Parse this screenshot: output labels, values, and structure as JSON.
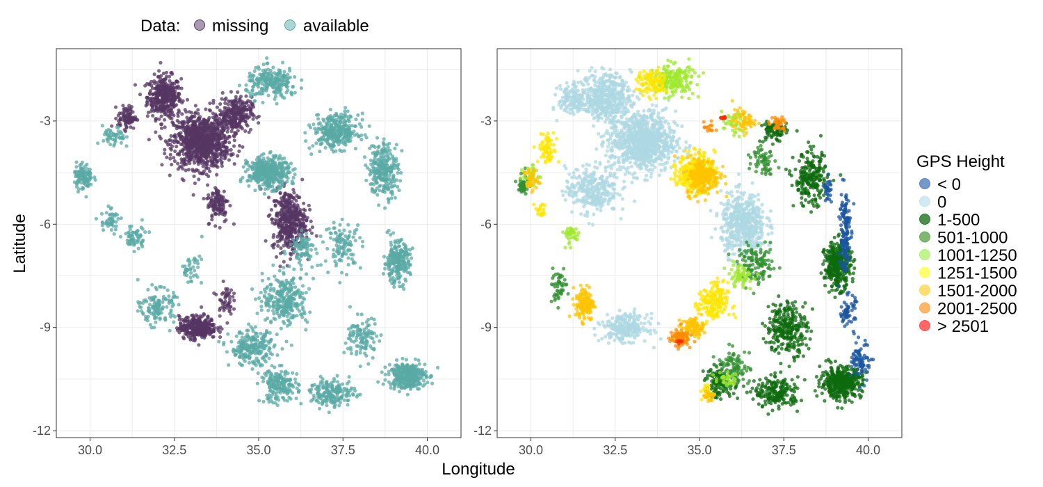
{
  "chart_data": [
    {
      "type": "scatter",
      "panel": "left",
      "xlabel": "Longitude",
      "ylabel": "Latitude",
      "xlim": [
        29,
        41
      ],
      "ylim": [
        -12.2,
        -0.9
      ],
      "xticks": [
        "30.0",
        "32.5",
        "35.0",
        "37.5",
        "40.0"
      ],
      "yticks": [
        "-3",
        "-6",
        "-9",
        "-12"
      ],
      "grid": true,
      "legend": {
        "title": "Data:",
        "position": "top",
        "entries": [
          {
            "label": "missing",
            "color": "#553563"
          },
          {
            "label": "available",
            "color": "#5aa9a6"
          }
        ]
      },
      "series": [
        {
          "name": "missing",
          "color": "#553563",
          "clusters": [
            {
              "x": 32.2,
              "y": -2.3,
              "sx": 0.45,
              "sy": 0.55,
              "n": 380
            },
            {
              "x": 33.3,
              "y": -3.6,
              "sx": 0.75,
              "sy": 0.7,
              "n": 950
            },
            {
              "x": 34.3,
              "y": -2.8,
              "sx": 0.45,
              "sy": 0.45,
              "n": 260
            },
            {
              "x": 31.1,
              "y": -2.9,
              "sx": 0.25,
              "sy": 0.3,
              "n": 90
            },
            {
              "x": 33.8,
              "y": -5.4,
              "sx": 0.3,
              "sy": 0.5,
              "n": 110
            },
            {
              "x": 35.9,
              "y": -5.9,
              "sx": 0.45,
              "sy": 0.8,
              "n": 420
            },
            {
              "x": 33.2,
              "y": -9.0,
              "sx": 0.5,
              "sy": 0.3,
              "n": 330
            },
            {
              "x": 34.0,
              "y": -8.2,
              "sx": 0.2,
              "sy": 0.4,
              "n": 50
            }
          ]
        },
        {
          "name": "available",
          "color": "#5aa9a6",
          "clusters": [
            {
              "x": 29.8,
              "y": -4.6,
              "sx": 0.25,
              "sy": 0.35,
              "n": 110
            },
            {
              "x": 30.7,
              "y": -3.5,
              "sx": 0.3,
              "sy": 0.3,
              "n": 50
            },
            {
              "x": 35.4,
              "y": -1.9,
              "sx": 0.7,
              "sy": 0.4,
              "n": 230
            },
            {
              "x": 37.3,
              "y": -3.3,
              "sx": 0.6,
              "sy": 0.45,
              "n": 330
            },
            {
              "x": 35.3,
              "y": -4.5,
              "sx": 0.55,
              "sy": 0.4,
              "n": 420
            },
            {
              "x": 38.7,
              "y": -4.4,
              "sx": 0.4,
              "sy": 0.7,
              "n": 260
            },
            {
              "x": 39.1,
              "y": -7.1,
              "sx": 0.35,
              "sy": 0.55,
              "n": 230
            },
            {
              "x": 37.5,
              "y": -6.6,
              "sx": 0.5,
              "sy": 0.6,
              "n": 110
            },
            {
              "x": 35.8,
              "y": -8.2,
              "sx": 0.6,
              "sy": 0.65,
              "n": 280
            },
            {
              "x": 34.8,
              "y": -9.6,
              "sx": 0.6,
              "sy": 0.45,
              "n": 230
            },
            {
              "x": 35.6,
              "y": -10.7,
              "sx": 0.5,
              "sy": 0.45,
              "n": 180
            },
            {
              "x": 37.2,
              "y": -10.9,
              "sx": 0.6,
              "sy": 0.35,
              "n": 180
            },
            {
              "x": 39.4,
              "y": -10.4,
              "sx": 0.5,
              "sy": 0.35,
              "n": 330
            },
            {
              "x": 38.1,
              "y": -9.3,
              "sx": 0.45,
              "sy": 0.55,
              "n": 110
            },
            {
              "x": 32.0,
              "y": -8.4,
              "sx": 0.45,
              "sy": 0.45,
              "n": 130
            },
            {
              "x": 31.3,
              "y": -6.4,
              "sx": 0.3,
              "sy": 0.35,
              "n": 60
            },
            {
              "x": 30.6,
              "y": -5.9,
              "sx": 0.25,
              "sy": 0.3,
              "n": 50
            },
            {
              "x": 33.0,
              "y": -7.3,
              "sx": 0.3,
              "sy": 0.4,
              "n": 40
            },
            {
              "x": 36.3,
              "y": -6.7,
              "sx": 0.35,
              "sy": 0.4,
              "n": 80
            }
          ]
        }
      ]
    },
    {
      "type": "scatter",
      "panel": "right",
      "xlim": [
        29,
        41
      ],
      "ylim": [
        -12.2,
        -0.9
      ],
      "xticks": [
        "30.0",
        "32.5",
        "35.0",
        "37.5",
        "40.0"
      ],
      "yticks": [
        "-3",
        "-6",
        "-9",
        "-12"
      ],
      "grid": true,
      "legend": {
        "title": "GPS Height",
        "position": "right",
        "entries": [
          {
            "label": "< 0",
            "color": "#5b87bf"
          },
          {
            "label": "0",
            "color": "#c9e5ee"
          },
          {
            "label": "1-500",
            "color": "#2e7d2e"
          },
          {
            "label": "501-1000",
            "color": "#6aaa5a"
          },
          {
            "label": "1001-1250",
            "color": "#b5f27a"
          },
          {
            "label": "1251-1500",
            "color": "#ffff55"
          },
          {
            "label": "1501-2000",
            "color": "#ffd95a"
          },
          {
            "label": "2001-2500",
            "color": "#ffa94d"
          },
          {
            "label": "> 2501",
            "color": "#ff4d4d"
          }
        ]
      },
      "series": [
        {
          "name": "0",
          "color": "#add8e3",
          "clusters": [
            {
              "x": 32.2,
              "y": -2.3,
              "sx": 0.7,
              "sy": 0.6,
              "n": 500
            },
            {
              "x": 33.3,
              "y": -3.6,
              "sx": 0.9,
              "sy": 0.8,
              "n": 900
            },
            {
              "x": 31.8,
              "y": -5.0,
              "sx": 0.7,
              "sy": 0.6,
              "n": 300
            },
            {
              "x": 36.3,
              "y": -6.0,
              "sx": 0.6,
              "sy": 0.8,
              "n": 520
            },
            {
              "x": 32.8,
              "y": -9.0,
              "sx": 0.6,
              "sy": 0.35,
              "n": 260
            },
            {
              "x": 31.2,
              "y": -2.4,
              "sx": 0.35,
              "sy": 0.4,
              "n": 120
            }
          ]
        },
        {
          "name": "1-500",
          "color": "#0d6b0d",
          "clusters": [
            {
              "x": 39.1,
              "y": -7.2,
              "sx": 0.35,
              "sy": 0.6,
              "n": 360
            },
            {
              "x": 37.6,
              "y": -9.0,
              "sx": 0.55,
              "sy": 0.7,
              "n": 280
            },
            {
              "x": 39.2,
              "y": -10.6,
              "sx": 0.55,
              "sy": 0.4,
              "n": 420
            },
            {
              "x": 37.3,
              "y": -10.9,
              "sx": 0.6,
              "sy": 0.4,
              "n": 200
            },
            {
              "x": 38.3,
              "y": -4.7,
              "sx": 0.45,
              "sy": 0.7,
              "n": 230
            },
            {
              "x": 37.2,
              "y": -3.3,
              "sx": 0.35,
              "sy": 0.3,
              "n": 80
            },
            {
              "x": 35.6,
              "y": -10.6,
              "sx": 0.4,
              "sy": 0.4,
              "n": 120
            }
          ]
        },
        {
          "name": "501-1000",
          "color": "#2f8f2f",
          "clusters": [
            {
              "x": 29.8,
              "y": -4.8,
              "sx": 0.15,
              "sy": 0.3,
              "n": 50
            },
            {
              "x": 36.7,
              "y": -7.2,
              "sx": 0.5,
              "sy": 0.5,
              "n": 120
            },
            {
              "x": 36.0,
              "y": -10.2,
              "sx": 0.45,
              "sy": 0.5,
              "n": 100
            },
            {
              "x": 30.8,
              "y": -7.8,
              "sx": 0.25,
              "sy": 0.4,
              "n": 50
            },
            {
              "x": 36.9,
              "y": -4.1,
              "sx": 0.3,
              "sy": 0.4,
              "n": 60
            }
          ]
        },
        {
          "name": "< 0",
          "color": "#1a56a0",
          "clusters": [
            {
              "x": 39.3,
              "y": -6.2,
              "sx": 0.15,
              "sy": 1.2,
              "n": 140
            },
            {
              "x": 39.8,
              "y": -10.0,
              "sx": 0.25,
              "sy": 0.5,
              "n": 80
            },
            {
              "x": 39.4,
              "y": -8.5,
              "sx": 0.2,
              "sy": 0.4,
              "n": 60
            },
            {
              "x": 38.8,
              "y": -5.0,
              "sx": 0.1,
              "sy": 0.35,
              "n": 30
            }
          ]
        },
        {
          "name": "1001-1250",
          "color": "#9fe82f",
          "clusters": [
            {
              "x": 34.2,
              "y": -1.8,
              "sx": 0.6,
              "sy": 0.4,
              "n": 200
            },
            {
              "x": 31.2,
              "y": -6.3,
              "sx": 0.25,
              "sy": 0.25,
              "n": 40
            },
            {
              "x": 30.0,
              "y": -4.6,
              "sx": 0.2,
              "sy": 0.3,
              "n": 40
            },
            {
              "x": 36.2,
              "y": -7.5,
              "sx": 0.35,
              "sy": 0.3,
              "n": 60
            },
            {
              "x": 36.0,
              "y": -3.1,
              "sx": 0.3,
              "sy": 0.3,
              "n": 40
            },
            {
              "x": 35.8,
              "y": -10.5,
              "sx": 0.3,
              "sy": 0.2,
              "n": 30
            }
          ]
        },
        {
          "name": "1251-1500",
          "color": "#ffe600",
          "clusters": [
            {
              "x": 34.9,
              "y": -4.5,
              "sx": 0.5,
              "sy": 0.5,
              "n": 300
            },
            {
              "x": 30.5,
              "y": -3.8,
              "sx": 0.25,
              "sy": 0.4,
              "n": 70
            },
            {
              "x": 33.6,
              "y": -1.9,
              "sx": 0.4,
              "sy": 0.35,
              "n": 100
            },
            {
              "x": 35.4,
              "y": -8.3,
              "sx": 0.4,
              "sy": 0.55,
              "n": 170
            },
            {
              "x": 30.3,
              "y": -5.6,
              "sx": 0.15,
              "sy": 0.2,
              "n": 20
            },
            {
              "x": 35.2,
              "y": -10.9,
              "sx": 0.15,
              "sy": 0.25,
              "n": 25
            }
          ]
        },
        {
          "name": "1501-2000",
          "color": "#ffc300",
          "clusters": [
            {
              "x": 31.6,
              "y": -8.3,
              "sx": 0.25,
              "sy": 0.45,
              "n": 140
            },
            {
              "x": 35.1,
              "y": -4.6,
              "sx": 0.45,
              "sy": 0.5,
              "n": 210
            },
            {
              "x": 34.8,
              "y": -9.0,
              "sx": 0.3,
              "sy": 0.25,
              "n": 100
            },
            {
              "x": 30.0,
              "y": -4.7,
              "sx": 0.2,
              "sy": 0.3,
              "n": 40
            },
            {
              "x": 36.3,
              "y": -3.0,
              "sx": 0.3,
              "sy": 0.3,
              "n": 60
            },
            {
              "x": 35.3,
              "y": -11.0,
              "sx": 0.15,
              "sy": 0.2,
              "n": 20
            }
          ]
        },
        {
          "name": "2001-2500",
          "color": "#ff8c00",
          "clusters": [
            {
              "x": 34.4,
              "y": -9.3,
              "sx": 0.25,
              "sy": 0.2,
              "n": 110
            },
            {
              "x": 37.3,
              "y": -3.1,
              "sx": 0.25,
              "sy": 0.2,
              "n": 30
            },
            {
              "x": 35.3,
              "y": -3.2,
              "sx": 0.15,
              "sy": 0.15,
              "n": 15
            }
          ]
        },
        {
          "name": "> 2501",
          "color": "#ff2a00",
          "clusters": [
            {
              "x": 35.7,
              "y": -2.9,
              "sx": 0.08,
              "sy": 0.06,
              "n": 12
            },
            {
              "x": 34.4,
              "y": -9.4,
              "sx": 0.06,
              "sy": 0.06,
              "n": 6
            }
          ]
        }
      ]
    }
  ]
}
